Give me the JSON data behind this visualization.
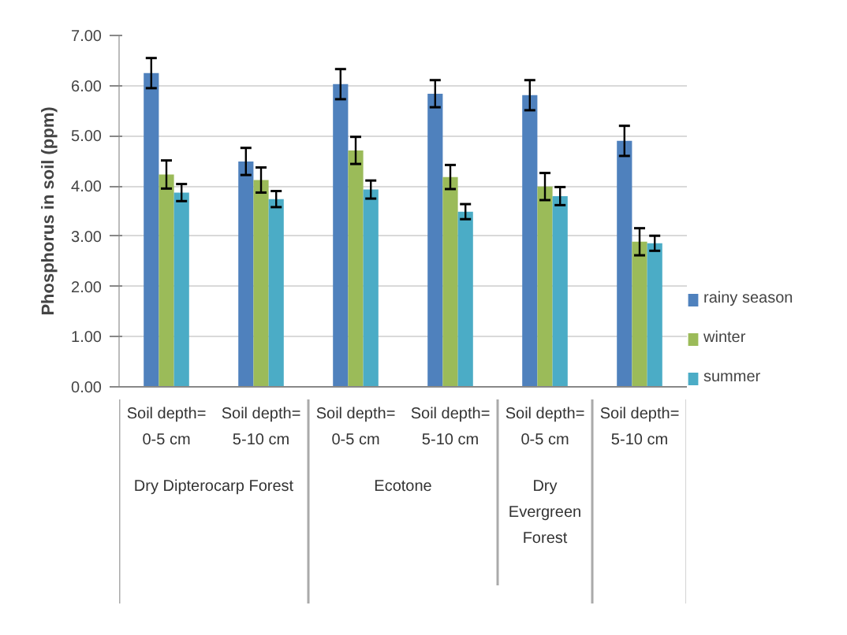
{
  "chart_data": {
    "type": "bar",
    "ylabel": "Phosphorus in soil (ppm)",
    "categories": [
      "Soil depth= 0-5 cm",
      "Soil depth= 5-10 cm",
      "Soil depth= 0-5 cm",
      "Soil depth= 5-10 cm",
      "Soil depth= 0-5 cm",
      "Soil depth= 5-10 cm"
    ],
    "series": [
      {
        "name": "rainy season",
        "color": "#4f81bd",
        "values": [
          6.25,
          4.49,
          6.03,
          5.84,
          5.81,
          4.9
        ],
        "errors": [
          0.3,
          0.27,
          0.3,
          0.27,
          0.3,
          0.3
        ]
      },
      {
        "name": "winter",
        "color": "#9bbb59",
        "values": [
          4.23,
          4.12,
          4.71,
          4.18,
          3.99,
          2.89
        ],
        "errors": [
          0.28,
          0.25,
          0.27,
          0.24,
          0.27,
          0.27
        ]
      },
      {
        "name": "summer",
        "color": "#4bacc6",
        "values": [
          3.87,
          3.74,
          3.93,
          3.49,
          3.8,
          2.86
        ],
        "errors": [
          0.17,
          0.16,
          0.18,
          0.15,
          0.18,
          0.15
        ]
      }
    ],
    "annotations": [
      "Dry Dipterocarp Forest",
      "Ecotone",
      "Dry Evergreen Forest"
    ],
    "ylim": [
      0,
      7
    ],
    "yticks": [
      {
        "value": 0,
        "label": "0.00"
      },
      {
        "value": 1,
        "label": "1.00"
      },
      {
        "value": 2,
        "label": "2.00"
      },
      {
        "value": 3,
        "label": "3.00"
      },
      {
        "value": 4,
        "label": "4.00"
      },
      {
        "value": 5,
        "label": "5.00"
      },
      {
        "value": 6,
        "label": "6.00"
      },
      {
        "value": 7,
        "label": "7.00"
      }
    ],
    "grid": "y",
    "legend": "right"
  }
}
